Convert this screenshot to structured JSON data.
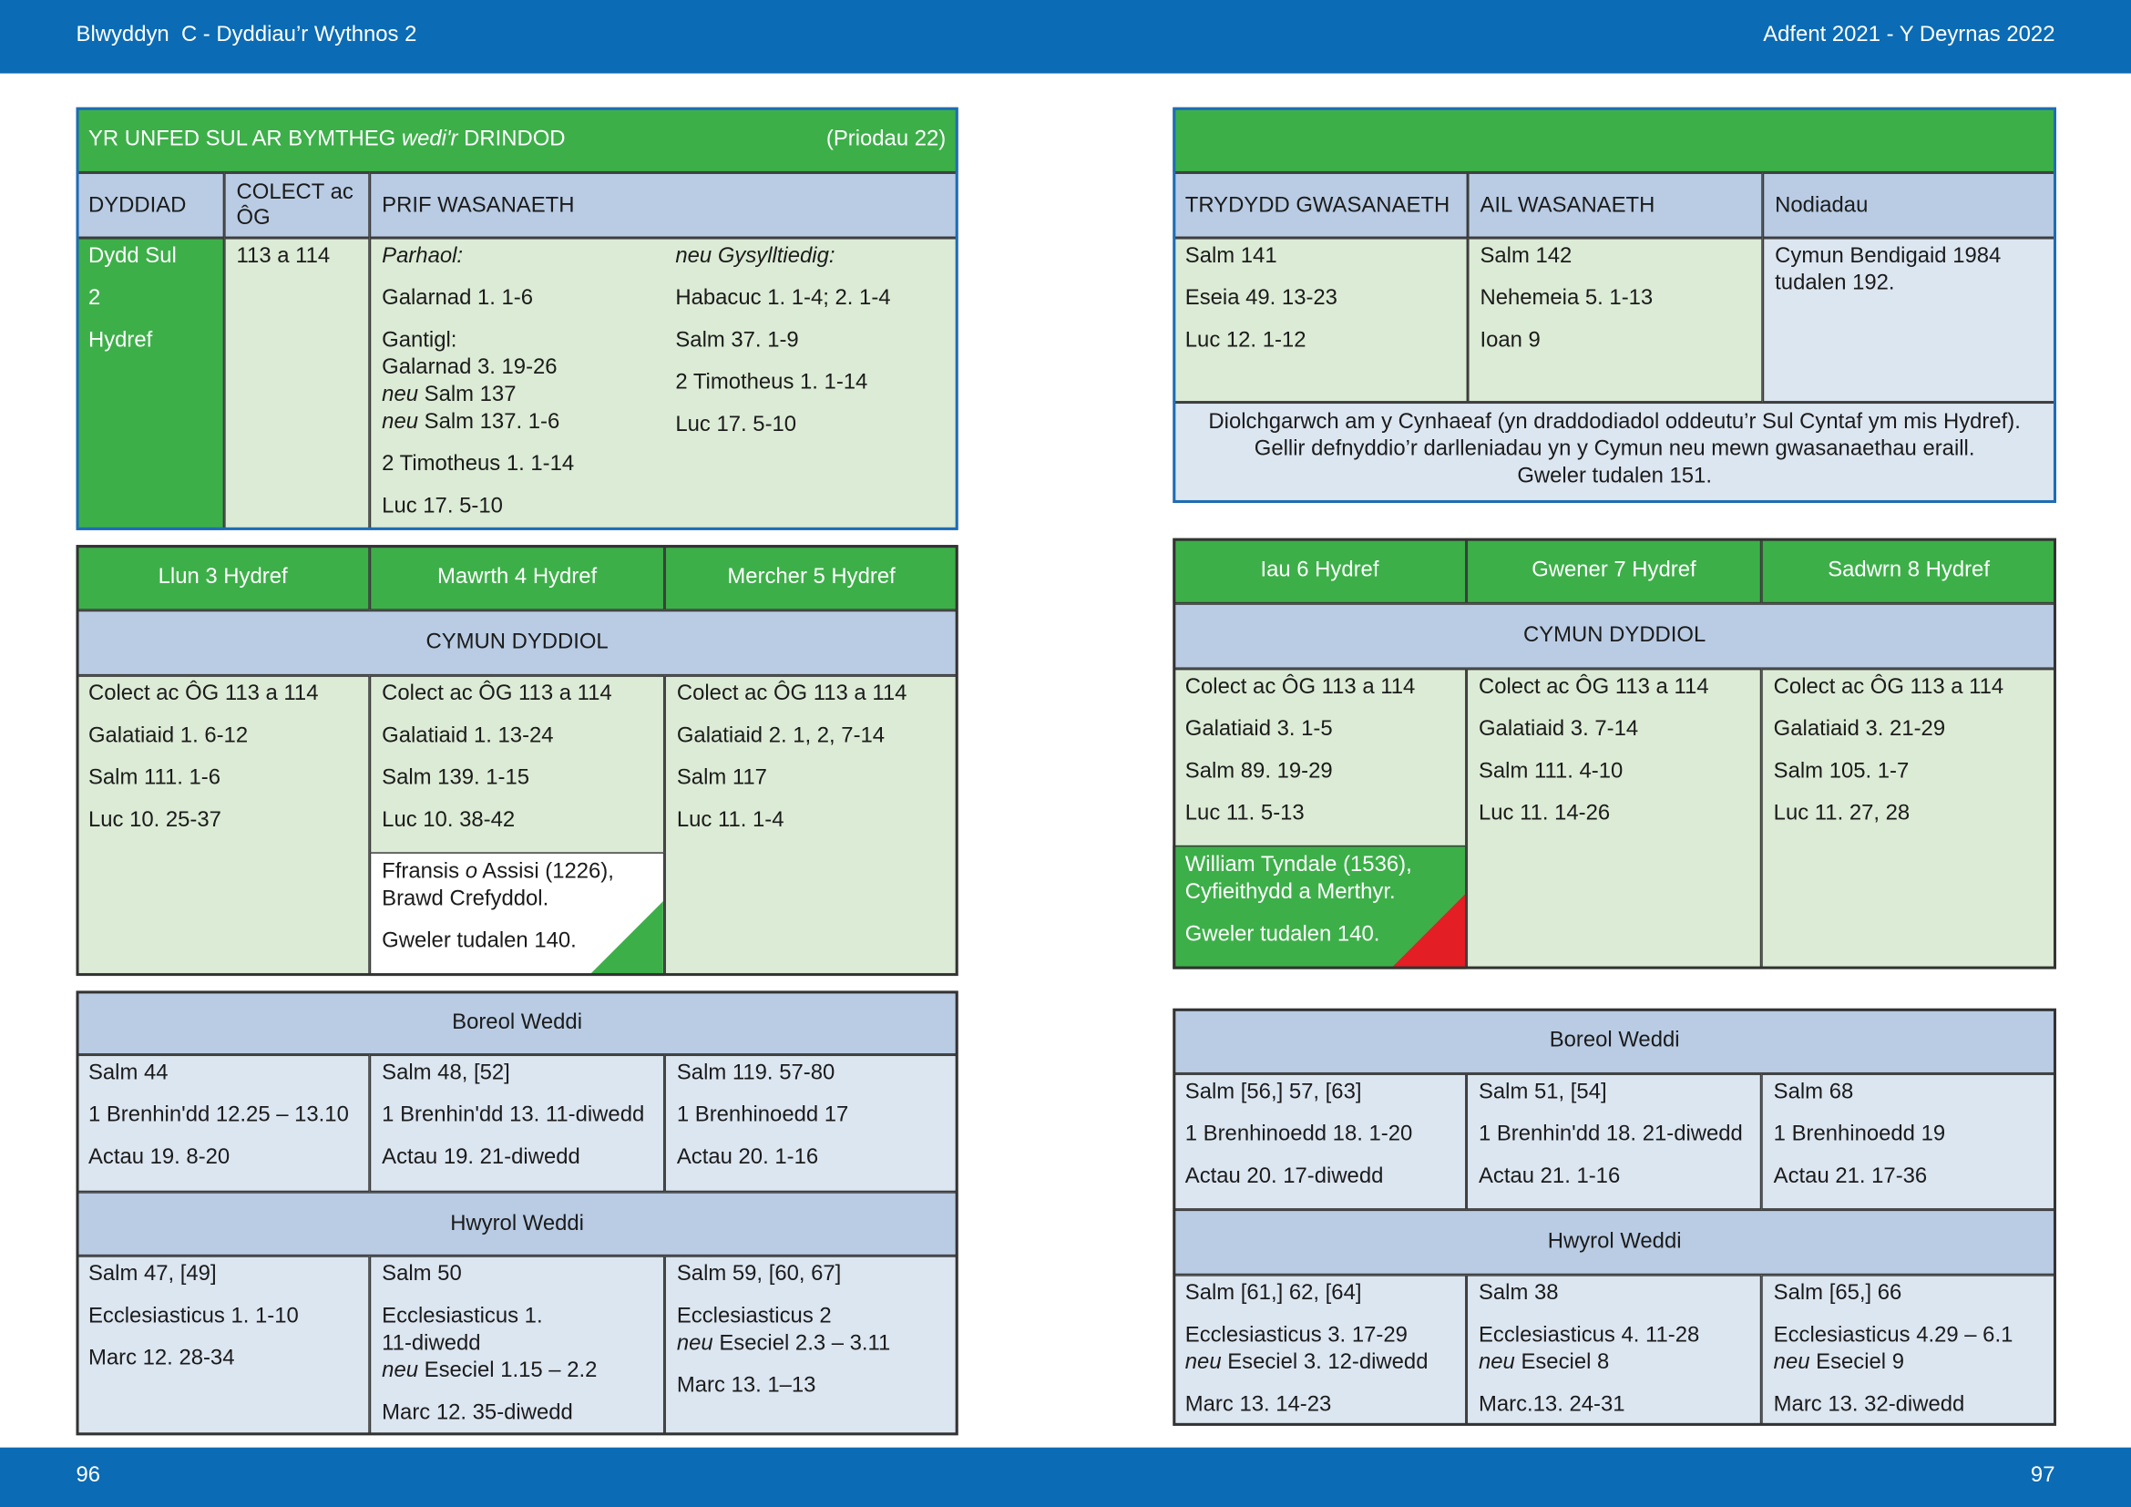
{
  "header": {
    "left": "Blwyddyn  C - Dyddiau’r Wythnos 2",
    "right": "Adfent 2021 - Y Deyrnas 2022"
  },
  "footer": {
    "left": "96",
    "right": "97"
  },
  "left_page": {
    "sunday": {
      "title": [
        "YR UNFED SUL AR BYMTHEG",
        {
          "italic": "wedi'r"
        },
        "DRINDOD"
      ],
      "reference": "(Priodau 22)",
      "headers": [
        "DYDDIAD",
        "COLECT ac ÔG",
        "PRIF WASANAETH"
      ],
      "date": [
        "Dydd Sul",
        "2",
        "Hydref"
      ],
      "collect": [
        "113 a 114"
      ],
      "principal": [
        [
          [
            {
              "italic": "Parhaol:"
            }
          ],
          "Galarnad 1. 1-6",
          {
            "lines": [
              "Gantigl:",
              "Galarnad 3. 19-26",
              [
                {
                  "italic": "neu"
                },
                "Salm 137"
              ],
              [
                {
                  "italic": "neu"
                },
                "Salm 137. 1-6"
              ]
            ]
          },
          "2 Timotheus 1. 1-14",
          "Luc 17. 5-10"
        ],
        [
          [
            {
              "italic": "neu Gysylltiedig:"
            }
          ],
          "Habacuc 1. 1-4; 2. 1-4",
          "Salm 37. 1-9",
          "2 Timotheus 1. 1-14",
          "Luc 17. 5-10"
        ]
      ]
    },
    "weekdays": {
      "eucharist_heading": "CYMUN DYDDIOL",
      "days": [
        {
          "name": "Llun 3 Hydref",
          "readings": [
            "Colect ac ÔG 113 a 114",
            "Galatiaid 1. 6-12",
            "Salm 111. 1-6",
            "Luc 10. 25-37"
          ]
        },
        {
          "name": "Mawrth 4 Hydref",
          "readings": [
            "Colect ac ÔG 113 a 114",
            "Galatiaid 1. 13-24",
            "Salm 139. 1-15",
            "Luc 10. 38-42"
          ],
          "commemoration": [
            {
              "lines": [
                [
                  "Ffransis",
                  {
                    "italic": "o"
                  },
                  "Assisi (1226),"
                ],
                "Brawd Crefyddol."
              ]
            },
            "Gweler tudalen 140."
          ]
        },
        {
          "name": "Mercher 5 Hydref",
          "readings": [
            "Colect ac ÔG 113 a 114",
            "Galatiaid 2. 1, 2, 7-14",
            "Salm 117",
            "Luc 11. 1-4"
          ]
        }
      ]
    },
    "morning_prayer": {
      "heading": "Boreol Weddi",
      "days": [
        [
          "Salm 44",
          "1 Brenhin'dd 12.25 – 13.10",
          "Actau 19. 8-20"
        ],
        [
          "Salm 48, [52]",
          "1 Brenhin'dd 13. 11-diwedd",
          "Actau 19. 21-diwedd"
        ],
        [
          "Salm 119. 57-80",
          "1 Brenhinoedd 17",
          "Actau 20. 1-16"
        ]
      ]
    },
    "evening_prayer": {
      "heading": "Hwyrol Weddi",
      "days": [
        [
          "Salm 47, [49]",
          "Ecclesiasticus 1. 1-10",
          "Marc 12. 28-34"
        ],
        [
          "Salm 50",
          {
            "lines": [
              "Ecclesiasticus 1.",
              "11-diwedd",
              [
                {
                  "italic": "neu"
                },
                "Eseciel 1.15 – 2.2"
              ]
            ]
          },
          "Marc 12. 35-diwedd"
        ],
        [
          "Salm 59, [60, 67]",
          {
            "lines": [
              "Ecclesiasticus 2",
              [
                {
                  "italic": "neu"
                },
                "Eseciel 2.3 – 3.11"
              ]
            ]
          },
          "Marc 13. 1–13"
        ]
      ]
    }
  },
  "right_page": {
    "sunday": {
      "headers": [
        "TRYDYDD GWASANAETH",
        "AIL WASANAETH",
        "Nodiadau"
      ],
      "third_service": [
        "Salm 141",
        "Eseia 49. 13-23",
        "Luc 12. 1-12"
      ],
      "second_service": [
        "Salm 142",
        "Nehemeia 5. 1-13",
        "Ioan 9"
      ],
      "notes": [
        {
          "lines": [
            "Cymun Bendigaid 1984",
            "tudalen 192."
          ]
        }
      ],
      "harvest": {
        "lines": [
          "Diolchgarwch am y Cynhaeaf (yn draddodiadol oddeutu’r Sul Cyntaf ym mis Hydref).",
          "Gellir defnyddio’r darlleniadau yn y Cymun neu mewn gwasanaethau eraill.",
          "Gweler tudalen 151."
        ]
      }
    },
    "weekdays": {
      "eucharist_heading": "CYMUN DYDDIOL",
      "days": [
        {
          "name": "Iau 6 Hydref",
          "readings": [
            "Colect ac ÔG 113 a 114",
            "Galatiaid 3. 1-5",
            "Salm 89. 19-29",
            "Luc 11. 5-13"
          ],
          "commemoration": [
            {
              "lines": [
                "William Tyndale (1536),",
                "Cyfieithydd a Merthyr."
              ]
            },
            "Gweler tudalen 140."
          ]
        },
        {
          "name": "Gwener 7 Hydref",
          "readings": [
            "Colect ac ÔG 113 a 114",
            "Galatiaid 3. 7-14",
            "Salm 111. 4-10",
            "Luc 11. 14-26"
          ]
        },
        {
          "name": "Sadwrn 8 Hydref",
          "readings": [
            "Colect ac ÔG 113 a 114",
            "Galatiaid 3. 21-29",
            "Salm 105. 1-7",
            "Luc 11. 27, 28"
          ]
        }
      ]
    },
    "morning_prayer": {
      "heading": "Boreol Weddi",
      "days": [
        [
          "Salm [56,] 57, [63]",
          "1 Brenhinoedd 18. 1-20",
          "Actau 20. 17-diwedd"
        ],
        [
          "Salm 51, [54]",
          "1 Brenhin'dd 18. 21-diwedd",
          "Actau 21. 1-16"
        ],
        [
          "Salm 68",
          "1 Brenhinoedd 19",
          "Actau 21. 17-36"
        ]
      ]
    },
    "evening_prayer": {
      "heading": "Hwyrol Weddi",
      "days": [
        [
          "Salm [61,] 62, [64]",
          {
            "lines": [
              "Ecclesiasticus 3. 17-29",
              [
                {
                  "italic": "neu"
                },
                "Eseciel 3. 12-diwedd"
              ]
            ]
          },
          "Marc 13. 14-23"
        ],
        [
          "Salm 38",
          {
            "lines": [
              "Ecclesiasticus 4. 11-28",
              [
                {
                  "italic": "neu"
                },
                "Eseciel 8"
              ]
            ]
          },
          "Marc.13. 24-31"
        ],
        [
          "Salm [65,] 66",
          {
            "lines": [
              "Ecclesiasticus 4.29 – 6.1",
              [
                {
                  "italic": "neu"
                },
                "Eseciel 9"
              ]
            ]
          },
          "Marc 13. 32-diwedd"
        ]
      ]
    }
  }
}
